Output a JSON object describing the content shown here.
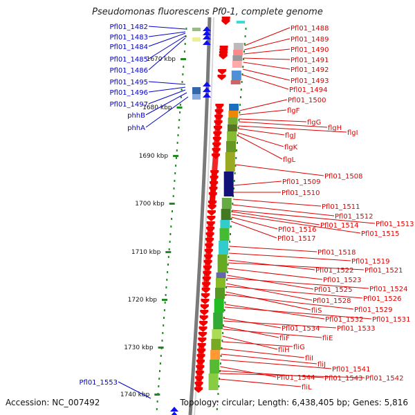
{
  "title": "Pseudomonas fluorescens Pf0-1, complete genome",
  "footer": {
    "accession": "Accession: NC_007492",
    "topology": "Topology: circular; Length: 6,438,405 bp; Genes: 5,816"
  },
  "colors": {
    "left_label": "#0000cc",
    "right_label": "#dd0000",
    "tick": "#228822",
    "backbone": "#7a7a7a",
    "gene_forward": "#1010ee",
    "gene_reverse": "#ee0000"
  },
  "scale_labels": [
    "1670 kbp",
    "1680 kbp",
    "1690 kbp",
    "1700 kbp",
    "1710 kbp",
    "1720 kbp",
    "1730 kbp",
    "1740 kbp"
  ],
  "left_genes": [
    "Pfl01_1482",
    "Pfl01_1483",
    "Pfl01_1484",
    "Pfl01_1485",
    "Pfl01_1486",
    "Pfl01_1495",
    "Pfl01_1496",
    "Pfl01_1497",
    "phhB",
    "phhA",
    "Pfl01_1553"
  ],
  "right_genes": [
    "Pfl01_1488",
    "Pfl01_1489",
    "Pfl01_1490",
    "Pfl01_1491",
    "Pfl01_1492",
    "Pfl01_1493",
    "Pfl01_1494",
    "Pfl01_1500",
    "flgF",
    "flgG",
    "flgH",
    "flgI",
    "flgJ",
    "flgK",
    "flgL",
    "Pfl01_1508",
    "Pfl01_1509",
    "Pfl01_1510",
    "Pfl01_1511",
    "Pfl01_1512",
    "Pfl01_1514",
    "Pfl01_1513",
    "Pfl01_1516",
    "Pfl01_1515",
    "Pfl01_1517",
    "Pfl01_1518",
    "Pfl01_1519",
    "Pfl01_1522",
    "Pfl01_1521",
    "Pfl01_1523",
    "Pfl01_1525",
    "Pfl01_1524",
    "Pfl01_1528",
    "Pfl01_1526",
    "fliS",
    "Pfl01_1529",
    "Pfl01_1532",
    "Pfl01_1531",
    "Pfl01_1534",
    "Pfl01_1533",
    "fliF",
    "fliE",
    "fliH",
    "fliG",
    "fliI",
    "fliJ",
    "Pfl01_1541",
    "Pfl01_1544",
    "Pfl01_1543",
    "Pfl01_1542",
    "fliL"
  ]
}
